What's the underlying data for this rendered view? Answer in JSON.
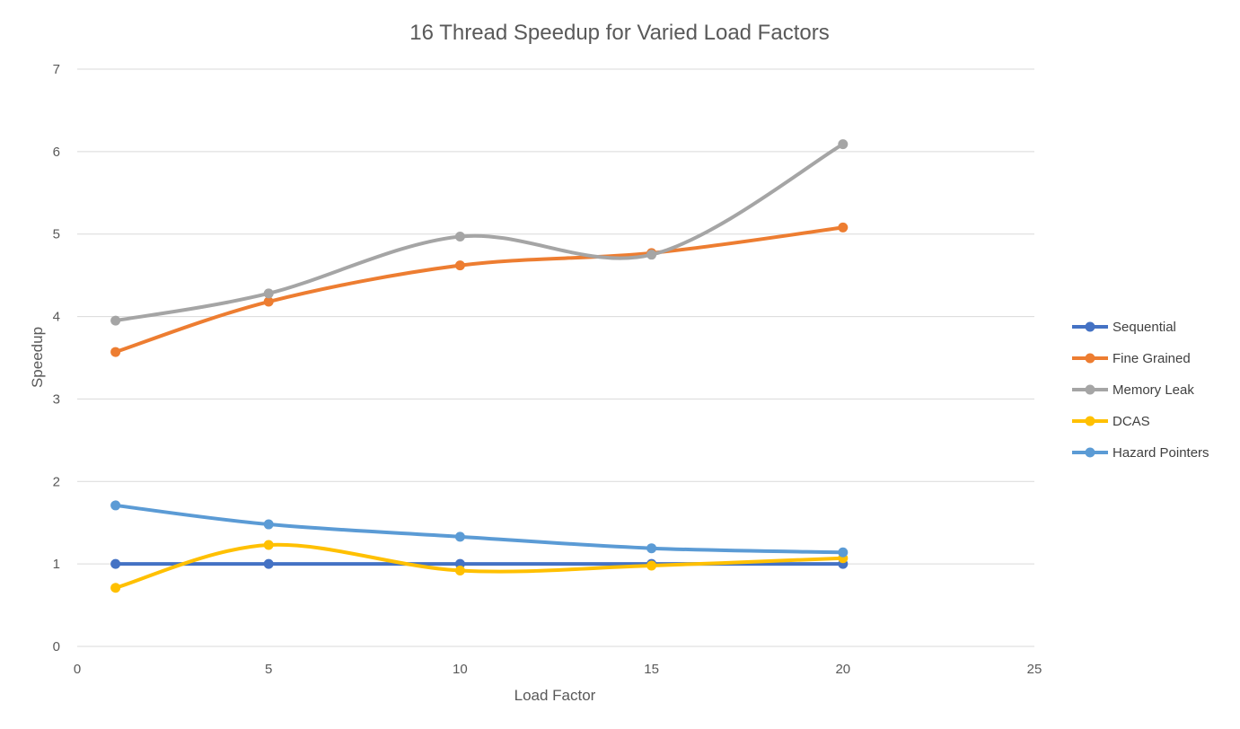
{
  "chart_data": {
    "type": "line",
    "title": "16 Thread Speedup for Varied Load Factors",
    "xlabel": "Load Factor",
    "ylabel": "Speedup",
    "xlim": [
      0,
      25
    ],
    "ylim": [
      0,
      7
    ],
    "x_ticks": [
      0,
      5,
      10,
      15,
      20,
      25
    ],
    "y_ticks": [
      0,
      1,
      2,
      3,
      4,
      5,
      6,
      7
    ],
    "grid": true,
    "smooth": true,
    "legend_position": "right",
    "x": [
      1,
      5,
      10,
      15,
      20
    ],
    "series": [
      {
        "name": "Sequential",
        "color": "#4472C4",
        "values": [
          1.0,
          1.0,
          1.0,
          1.0,
          1.0
        ]
      },
      {
        "name": "Fine Grained",
        "color": "#ED7D31",
        "values": [
          3.57,
          4.18,
          4.62,
          4.77,
          5.08
        ]
      },
      {
        "name": "Memory Leak",
        "color": "#A5A5A5",
        "values": [
          3.95,
          4.28,
          4.97,
          4.75,
          6.09
        ]
      },
      {
        "name": "DCAS",
        "color": "#FFC000",
        "values": [
          0.71,
          1.23,
          0.92,
          0.98,
          1.07
        ]
      },
      {
        "name": "Hazard Pointers",
        "color": "#5B9BD5",
        "values": [
          1.71,
          1.48,
          1.33,
          1.19,
          1.14
        ]
      }
    ]
  }
}
